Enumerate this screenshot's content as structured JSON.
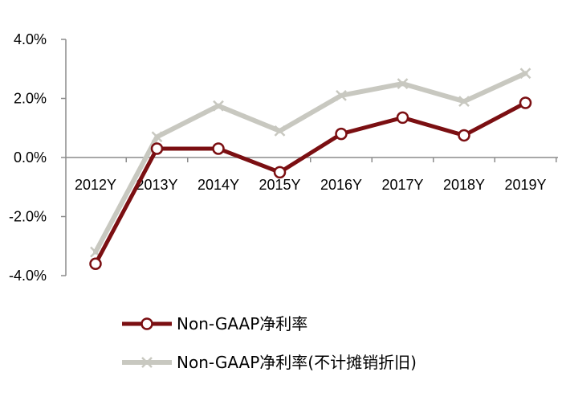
{
  "chart_data": {
    "type": "line",
    "categories": [
      "2012Y",
      "2013Y",
      "2014Y",
      "2015Y",
      "2016Y",
      "2017Y",
      "2018Y",
      "2019Y"
    ],
    "y_ticks": [
      "4.0%",
      "2.0%",
      "0.0%",
      "-2.0%",
      "-4.0%"
    ],
    "ylim": [
      -4.0,
      4.0
    ],
    "y_unit": "%",
    "grid": false,
    "legend_position": "bottom",
    "series": [
      {
        "name": "Non-GAAP净利率",
        "values": [
          -3.6,
          0.3,
          0.3,
          -0.5,
          0.8,
          1.35,
          0.75,
          1.85
        ],
        "color": "#7b0f12",
        "marker": "circle"
      },
      {
        "name": "Non-GAAP净利率(不计摊销折旧)",
        "values": [
          -3.2,
          0.7,
          1.75,
          0.9,
          2.1,
          2.5,
          1.9,
          2.85
        ],
        "color": "#c8c8c0",
        "marker": "x"
      }
    ]
  }
}
